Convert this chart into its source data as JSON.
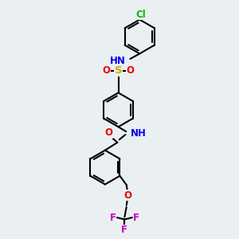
{
  "background_color": "#eaeff2",
  "bond_color": "#000000",
  "bond_width": 1.5,
  "atom_colors": {
    "N": "#0000ee",
    "O": "#ee0000",
    "S": "#ccaa00",
    "Cl": "#00bb00",
    "F": "#cc00cc",
    "C": "#000000",
    "H": "#007777"
  },
  "font_size": 8.5
}
